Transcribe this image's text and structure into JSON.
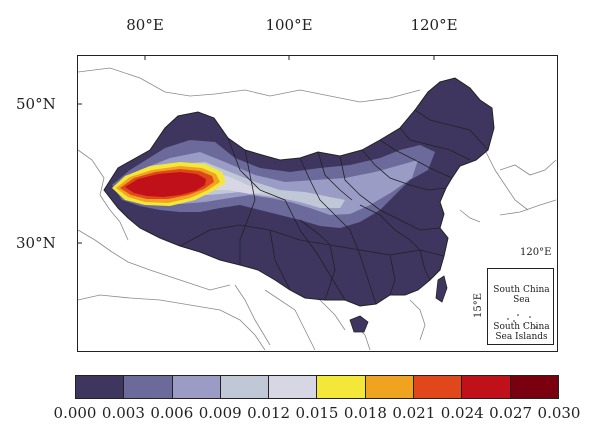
{
  "axes": {
    "lon_ticks": [
      "80°E",
      "100°E",
      "120°E"
    ],
    "lat_ticks": [
      "50°N",
      "30°N"
    ]
  },
  "inset": {
    "lon_label": "120°E",
    "lat_label": "15°E",
    "title": "South China Sea",
    "subtitle": "South China Sea Islands"
  },
  "legend": {
    "ticks": [
      "0.000",
      "0.003",
      "0.006",
      "0.009",
      "0.012",
      "0.015",
      "0.018",
      "0.021",
      "0.024",
      "0.027",
      "0.030"
    ],
    "colors": [
      "#3f3660",
      "#6b6a9a",
      "#9a9cc6",
      "#c0c8d8",
      "#d6d6e4",
      "#f3e83a",
      "#f0a31e",
      "#e0471b",
      "#c0101a",
      "#7a0010"
    ]
  },
  "colors": {
    "background_land": "#ffffff",
    "boundary": "#333333"
  }
}
